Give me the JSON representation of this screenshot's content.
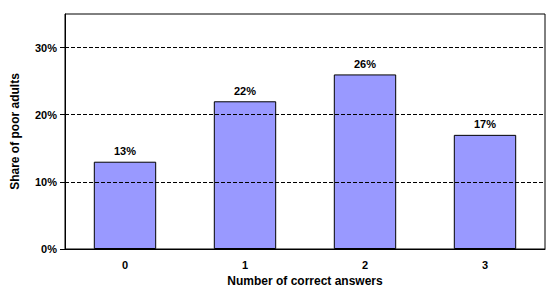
{
  "chart_data": {
    "type": "bar",
    "xlabel": "Number of correct answers",
    "ylabel": "Share of poor adults",
    "categories": [
      "0",
      "1",
      "2",
      "3"
    ],
    "values": [
      13,
      22,
      26,
      17
    ],
    "value_labels": [
      "13%",
      "22%",
      "26%",
      "17%"
    ],
    "color": "#9999ff",
    "ylim": [
      0,
      35
    ],
    "yticks": [
      {
        "value": 0,
        "label": "0%"
      },
      {
        "value": 10,
        "label": "10%"
      },
      {
        "value": 20,
        "label": "20%"
      },
      {
        "value": 30,
        "label": "30%"
      }
    ],
    "grid": true,
    "data_labels": true
  }
}
